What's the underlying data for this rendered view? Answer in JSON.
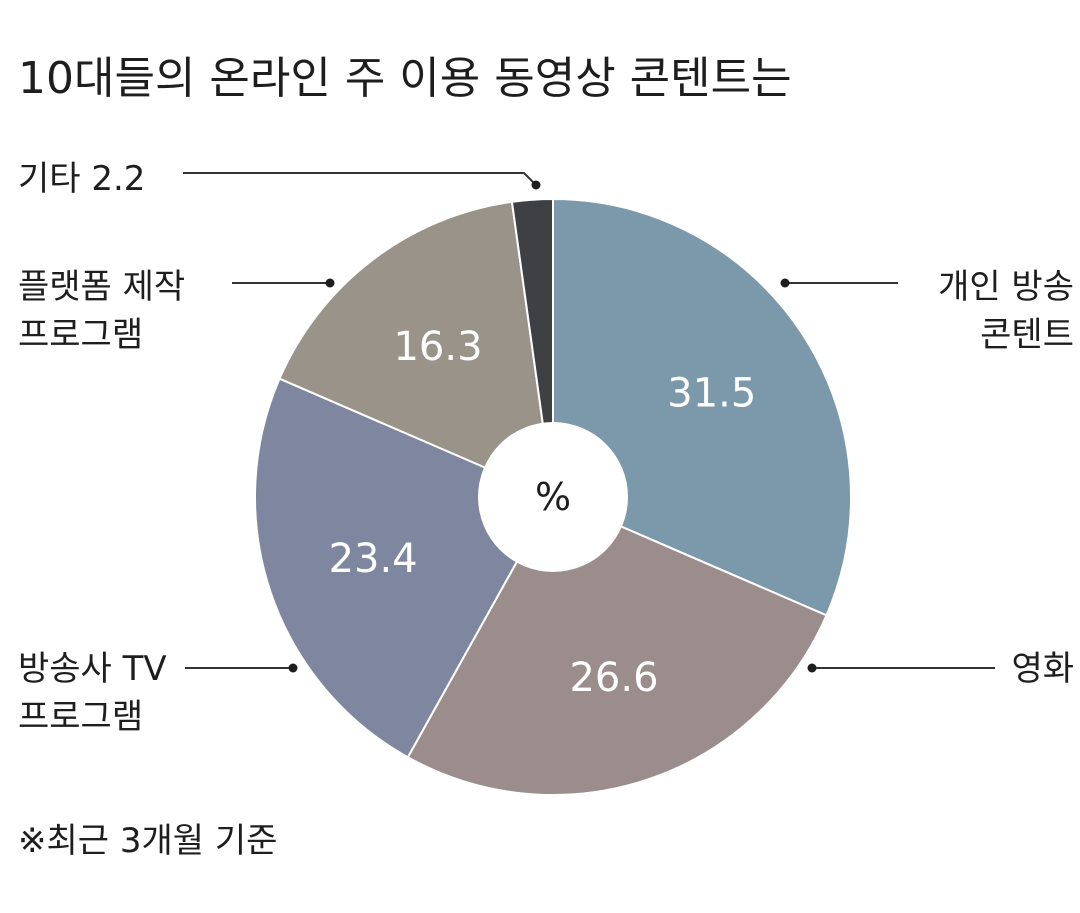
{
  "chart_data": {
    "type": "pie",
    "title": "10대들의 온라인 주 이용 동영상 콘텐트는",
    "center_label": "%",
    "note": "※최근 3개월 기준",
    "slices": [
      {
        "name_lines": [
          "개인 방송",
          "콘텐트"
        ],
        "value": 31.5,
        "color": "#7b99ab"
      },
      {
        "name_lines": [
          "영화"
        ],
        "value": 26.6,
        "color": "#9c8d8d"
      },
      {
        "name_lines": [
          "방송사 TV",
          "프로그램"
        ],
        "value": 23.4,
        "color": "#7f87a0"
      },
      {
        "name_lines": [
          "플랫폼 제작",
          "프로그램"
        ],
        "value": 16.3,
        "color": "#9a938a"
      },
      {
        "name_lines": [
          "기타 2.2"
        ],
        "value": 2.2,
        "color": "#3e4043"
      }
    ]
  }
}
